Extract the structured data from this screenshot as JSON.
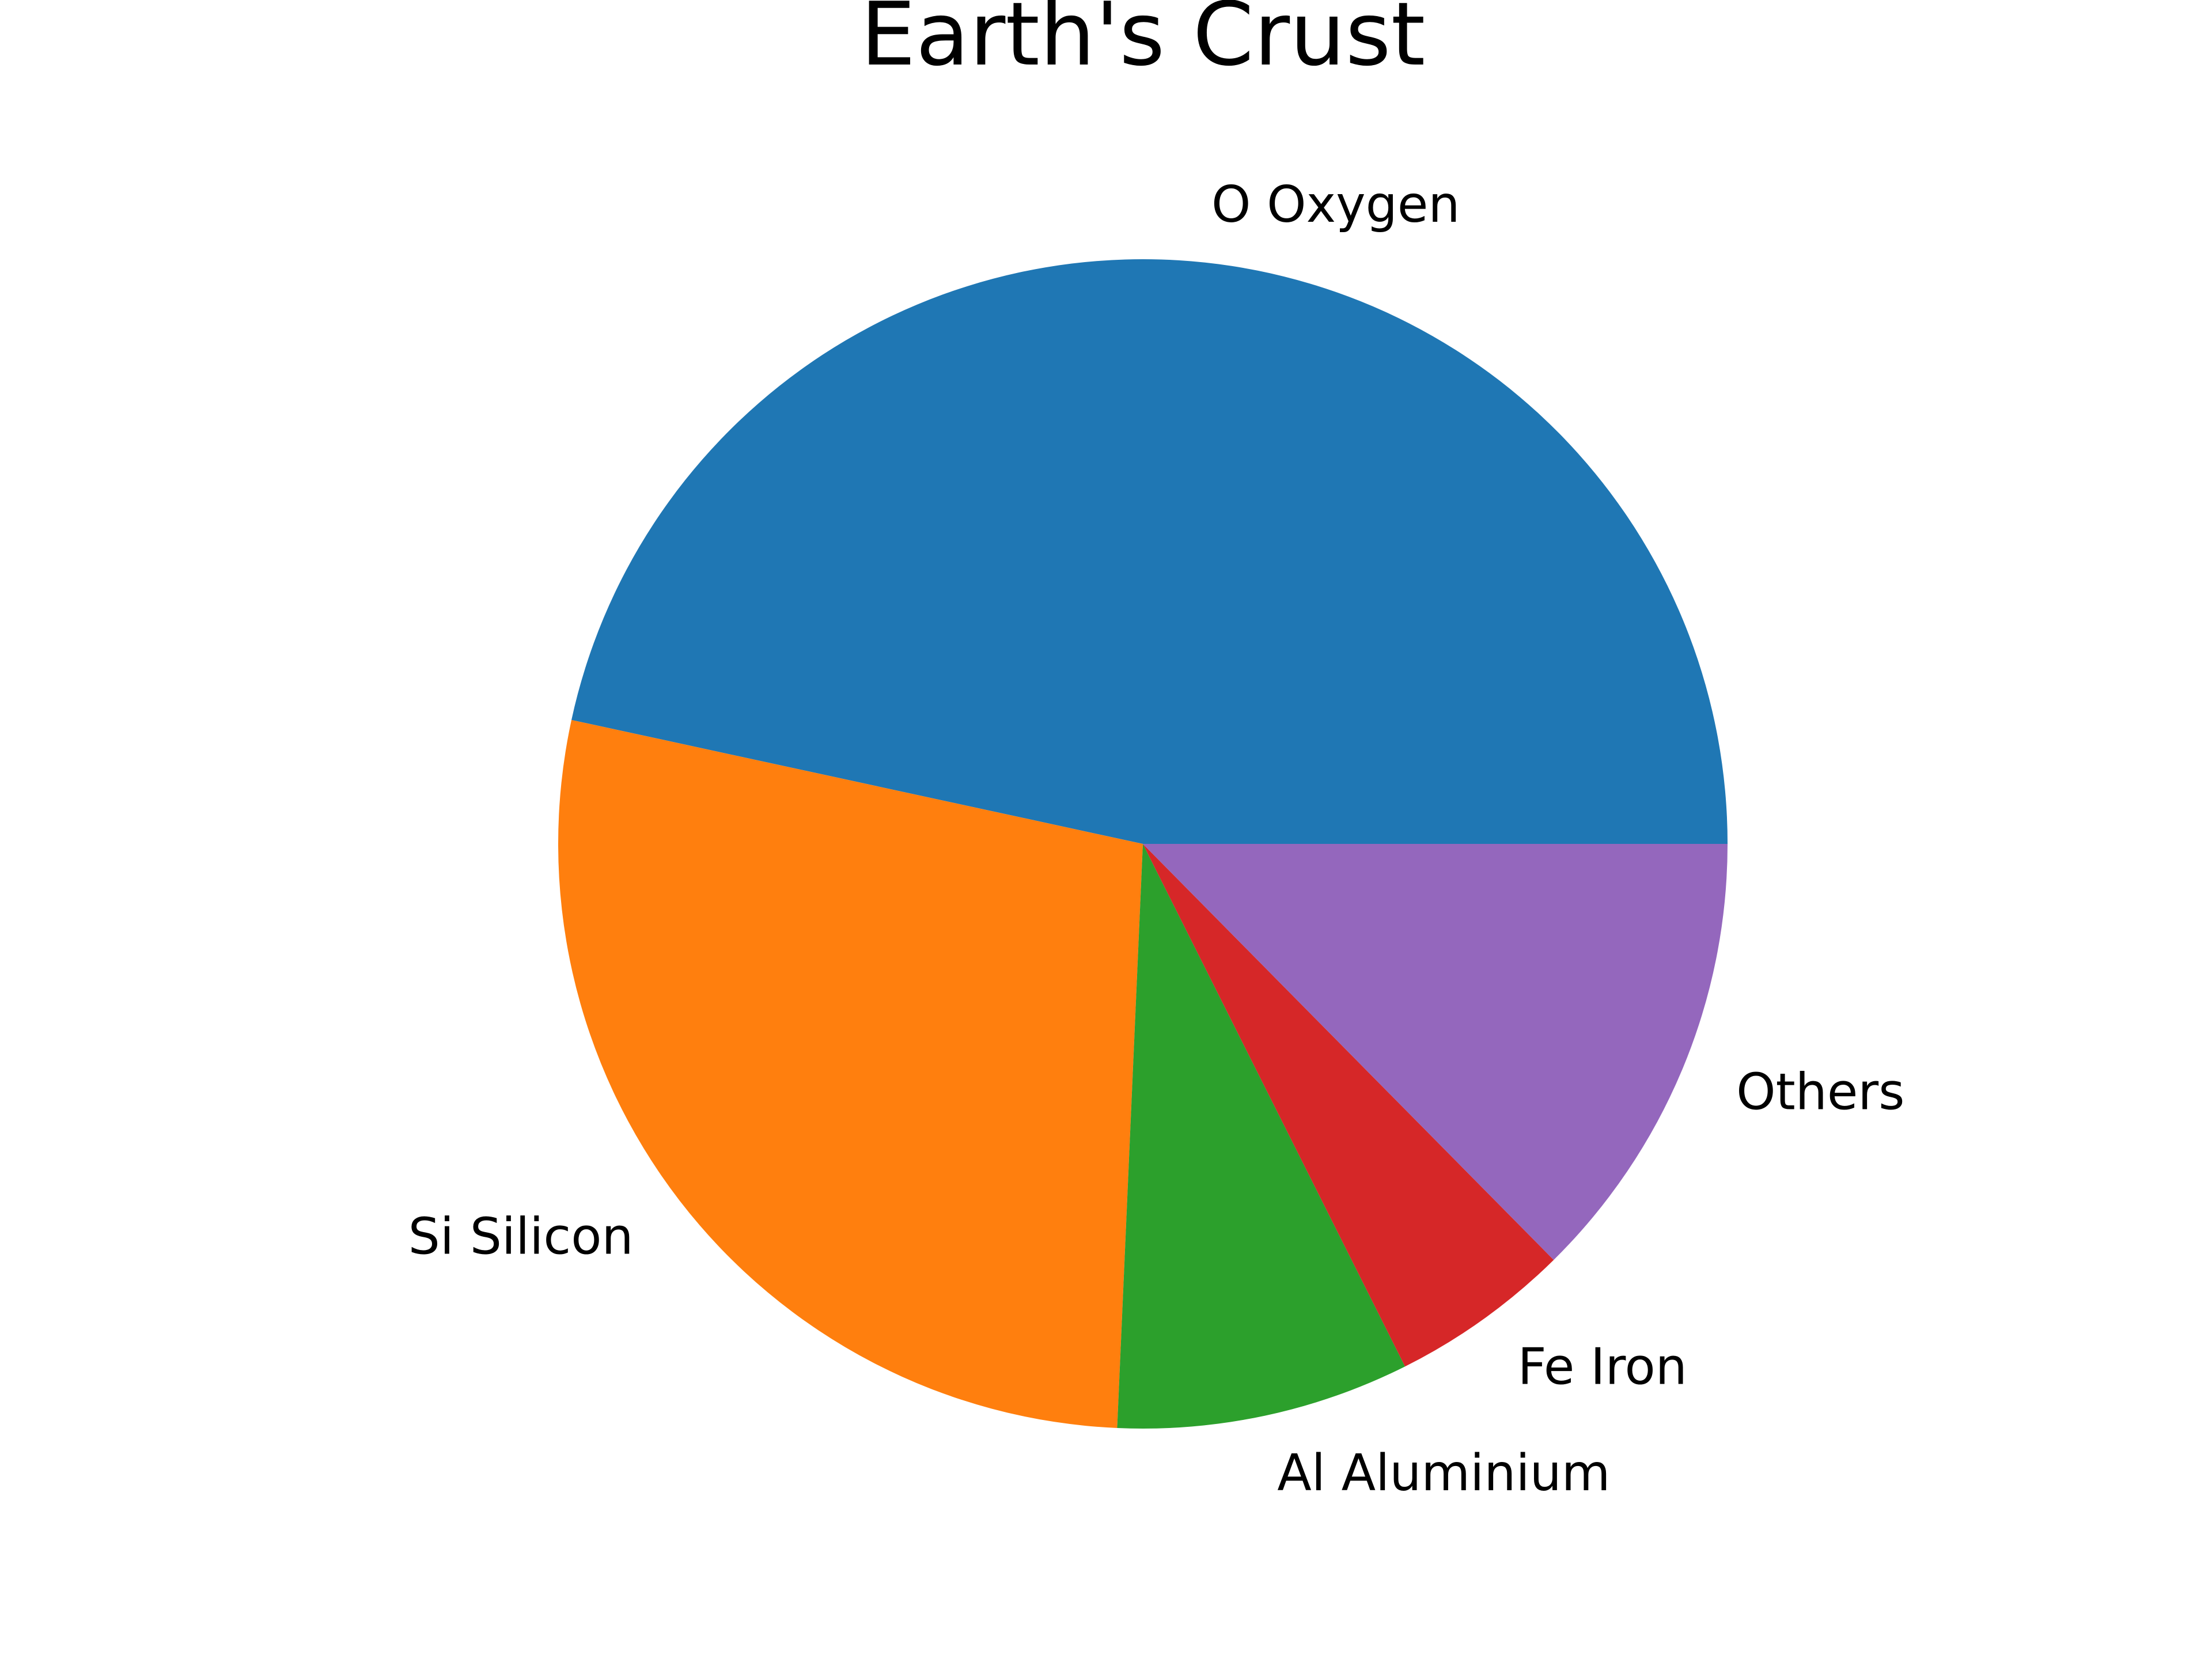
{
  "chart_data": {
    "type": "pie",
    "title": "Earth's Crust",
    "categories": [
      "O Oxygen",
      "Si Silicon",
      "Al Aluminium",
      "Fe Iron",
      "Others"
    ],
    "values": [
      46.6,
      27.7,
      8.1,
      5.0,
      12.6
    ],
    "colors": [
      "#1f77b4",
      "#ff7f0e",
      "#2ca02c",
      "#d62728",
      "#9467bd"
    ],
    "start_angle": 0,
    "direction": "counterclockwise",
    "legend": "none"
  }
}
